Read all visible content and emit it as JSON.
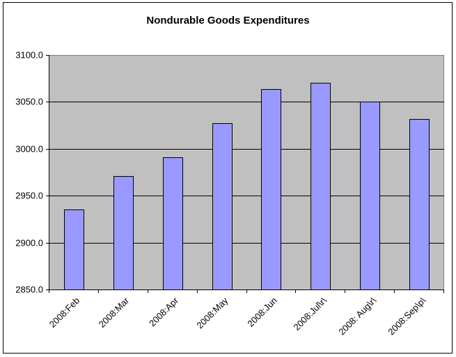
{
  "chart_data": {
    "type": "bar",
    "title": "Nondurable Goods Expenditures",
    "xlabel": "",
    "ylabel": "",
    "categories": [
      "2008:Feb",
      "2008:Mar",
      "2008:Apr",
      "2008:May",
      "2008:Jun",
      "2008:Jul\\r\\",
      "2008: Aug\\r\\",
      "2008:Sep\\p\\"
    ],
    "values": [
      2935,
      2971,
      2991,
      3027,
      3064,
      3070,
      3050,
      3032
    ],
    "ylim": [
      2850,
      3100
    ],
    "yticks": [
      "2850.0",
      "2900.0",
      "2950.0",
      "3000.0",
      "3050.0",
      "3100.0"
    ],
    "grid": true,
    "legend": null,
    "colors": {
      "bar": "#9999ff",
      "plot_background": "#c0c0c0",
      "gridline": "#000000"
    }
  }
}
